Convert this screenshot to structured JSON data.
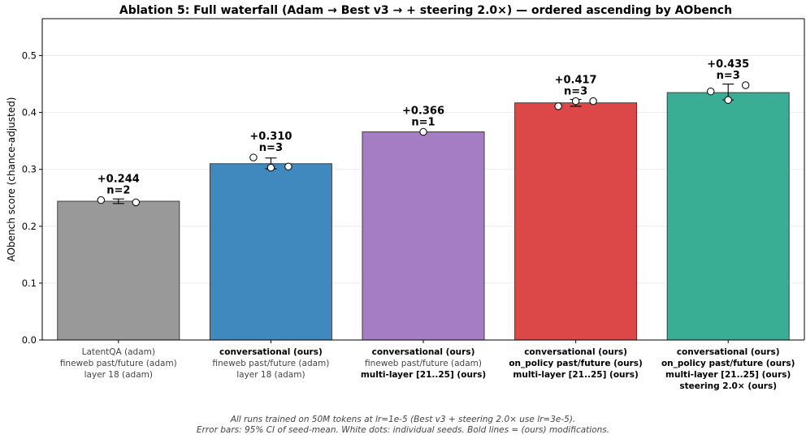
{
  "chart_data": {
    "type": "bar",
    "title": "Ablation 5: Full waterfall (Adam → Best v3 → + steering 2.0×) — ordered ascending by AObench",
    "ylabel": "AObench score (chance-adjusted)",
    "xlabel": "",
    "ylim": [
      0,
      0.565
    ],
    "yticks": [
      0.0,
      0.1,
      0.2,
      0.3,
      0.4,
      0.5
    ],
    "ytick_labels": [
      "0.0",
      "0.1",
      "0.2",
      "0.3",
      "0.4",
      "0.5"
    ],
    "grid": "horizontal",
    "bars": [
      {
        "value": 0.244,
        "value_label": "+0.244",
        "n_label": "n=2",
        "color": "#999999",
        "ci": [
          0.24,
          0.248
        ],
        "seeds": [
          0.246,
          0.242
        ],
        "label_lines": [
          {
            "text": "LatentQA (adam)",
            "bold": false
          },
          {
            "text": "fineweb past/future (adam)",
            "bold": false
          },
          {
            "text": "layer 18 (adam)",
            "bold": false
          }
        ]
      },
      {
        "value": 0.31,
        "value_label": "+0.310",
        "n_label": "n=3",
        "color": "#4089be",
        "ci": [
          0.301,
          0.32
        ],
        "seeds": [
          0.321,
          0.303,
          0.305
        ],
        "label_lines": [
          {
            "text": "conversational (ours)",
            "bold": true
          },
          {
            "text": "fineweb past/future (adam)",
            "bold": false
          },
          {
            "text": "layer 18 (adam)",
            "bold": false
          }
        ]
      },
      {
        "value": 0.366,
        "value_label": "+0.366",
        "n_label": "n=1",
        "color": "#a47dc5",
        "ci": null,
        "seeds": [
          0.366
        ],
        "label_lines": [
          {
            "text": "conversational (ours)",
            "bold": true
          },
          {
            "text": "fineweb past/future (adam)",
            "bold": false
          },
          {
            "text": "multi-layer [21..25] (ours)",
            "bold": true
          }
        ]
      },
      {
        "value": 0.417,
        "value_label": "+0.417",
        "n_label": "n=3",
        "color": "#dc4747",
        "ci": [
          0.411,
          0.423
        ],
        "seeds": [
          0.411,
          0.42,
          0.42
        ],
        "label_lines": [
          {
            "text": "conversational (ours)",
            "bold": true
          },
          {
            "text": "on_policy past/future (ours)",
            "bold": true
          },
          {
            "text": "multi-layer [21..25] (ours)",
            "bold": true
          }
        ]
      },
      {
        "value": 0.435,
        "value_label": "+0.435",
        "n_label": "n=3",
        "color": "#3aad95",
        "ci": [
          0.422,
          0.45
        ],
        "seeds": [
          0.437,
          0.422,
          0.448
        ],
        "label_lines": [
          {
            "text": "conversational (ours)",
            "bold": true
          },
          {
            "text": "on_policy past/future (ours)",
            "bold": true
          },
          {
            "text": "multi-layer [21..25] (ours)",
            "bold": true
          },
          {
            "text": "steering 2.0× (ours)",
            "bold": true
          }
        ]
      }
    ],
    "footnote": [
      "All runs trained on 50M tokens at lr=1e-5 (Best v3 + steering 2.0× use lr=3e-5).",
      "Error bars: 95% CI of seed-mean. White dots: individual seeds. Bold lines = (ours) modifications."
    ]
  }
}
